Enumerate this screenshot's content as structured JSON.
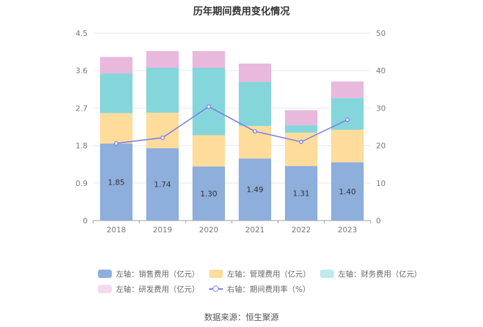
{
  "chart_data": {
    "type": "bar",
    "stacked": true,
    "title": "历年期间费用变化情况",
    "categories": [
      "2018",
      "2019",
      "2020",
      "2021",
      "2022",
      "2023"
    ],
    "y_left_ticks": [
      "0",
      "0.9",
      "1.8",
      "2.7",
      "3.6",
      "4.5"
    ],
    "y_right_ticks": [
      "0",
      "10",
      "20",
      "30",
      "40",
      "50"
    ],
    "ylim_left": [
      0,
      4.5
    ],
    "ylim_right": [
      0,
      50
    ],
    "series": [
      {
        "name": "左轴：销售费用（亿元）",
        "color": "#8eaedb",
        "axis": "left",
        "values": [
          1.85,
          1.74,
          1.3,
          1.49,
          1.31,
          1.4
        ],
        "labels": [
          "1.85",
          "1.74",
          "1.30",
          "1.49",
          "1.31",
          "1.40"
        ]
      },
      {
        "name": "左轴：管理费用（亿元）",
        "color": "#fedc9c",
        "axis": "left",
        "values": [
          0.73,
          0.85,
          0.75,
          0.78,
          0.8,
          0.78
        ]
      },
      {
        "name": "左轴：财务费用（亿元）",
        "color": "#84d6da",
        "axis": "left",
        "values": [
          0.95,
          1.08,
          1.62,
          1.06,
          0.18,
          0.76
        ]
      },
      {
        "name": "左轴：研发费用（亿元）",
        "color": "#e8b9dc",
        "axis": "left",
        "values": [
          0.4,
          0.4,
          0.4,
          0.44,
          0.36,
          0.4
        ]
      },
      {
        "name": "右轴：期间费用率（%）",
        "color": "#7b7ee6",
        "axis": "right",
        "type": "line",
        "values": [
          20.6,
          22.1,
          30.4,
          23.8,
          21.0,
          26.9
        ]
      }
    ]
  },
  "source": "数据来源：恒生聚源"
}
